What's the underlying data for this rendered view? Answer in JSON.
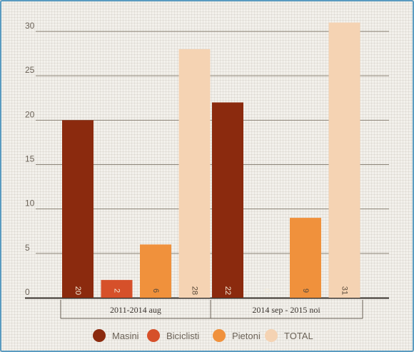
{
  "chart_data": {
    "type": "bar",
    "categories": [
      "2011-2014 aug",
      "2014 sep - 2015 noi"
    ],
    "series": [
      {
        "name": "Masini",
        "values": [
          20,
          22
        ],
        "color": "#8b2a0e",
        "label_color": "#f3ead8"
      },
      {
        "name": "Biciclisti",
        "values": [
          2,
          0
        ],
        "color": "#d6502a",
        "label_color": "#f3ead8"
      },
      {
        "name": "Pietoni",
        "values": [
          6,
          9
        ],
        "color": "#f0913c",
        "label_color": "#5a4a3a"
      },
      {
        "name": "TOTAL",
        "values": [
          28,
          31
        ],
        "color": "#f5d3b3",
        "label_color": "#5a4a3a"
      }
    ],
    "y_ticks": [
      "0",
      "5",
      "10",
      "15",
      "20",
      "25",
      "30"
    ],
    "ylim": [
      0,
      33
    ],
    "grid": true,
    "legend": "bottom"
  }
}
